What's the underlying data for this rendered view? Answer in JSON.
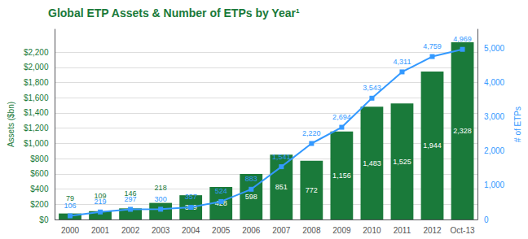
{
  "chart_data": {
    "type": "bar",
    "title": "Global ETP Assets & Number of ETPs by Year¹",
    "ylabel": "Assets ($bn)",
    "y2label": "# of ETPs",
    "categories": [
      "2000",
      "2001",
      "2002",
      "2003",
      "2004",
      "2005",
      "2006",
      "2007",
      "2008",
      "2009",
      "2010",
      "2011",
      "2012",
      "Oct-13"
    ],
    "series": [
      {
        "type": "bar",
        "color": "#1a7a3a",
        "values": [
          79,
          109,
          146,
          218,
          319,
          428,
          598,
          851,
          772,
          1156,
          1483,
          1525,
          1944,
          2328
        ],
        "value_labels": [
          "79",
          "109",
          "146",
          "218",
          "319",
          "428",
          "598",
          "851",
          "772",
          "1,156",
          "1,483",
          "1,525",
          "1,944",
          "2,328"
        ]
      },
      {
        "type": "line",
        "axis": "y2",
        "color": "#3399ff",
        "marker": "square",
        "values": [
          106,
          219,
          297,
          300,
          357,
          524,
          883,
          1541,
          2220,
          2694,
          3543,
          4311,
          4759,
          4969
        ],
        "value_labels": [
          "106",
          "219",
          "297",
          "300",
          "357",
          "524",
          "883",
          "1,541",
          "2,220",
          "2,694",
          "3,543",
          "4,311",
          "4,759",
          "4,969"
        ]
      }
    ],
    "ylim": [
      0,
      2500
    ],
    "yticks": [
      {
        "value": 0,
        "label": "$0"
      },
      {
        "value": 200,
        "label": "$200"
      },
      {
        "value": 400,
        "label": "$400"
      },
      {
        "value": 600,
        "label": "$600"
      },
      {
        "value": 800,
        "label": "$800"
      },
      {
        "value": 1000,
        "label": "$1,000"
      },
      {
        "value": 1200,
        "label": "$1,200"
      },
      {
        "value": 1400,
        "label": "$1,400"
      },
      {
        "value": 1600,
        "label": "$1,600"
      },
      {
        "value": 1800,
        "label": "$1,800"
      },
      {
        "value": 2000,
        "label": "$2,000"
      },
      {
        "value": 2200,
        "label": "$2,200"
      }
    ],
    "y2lim": [
      0,
      5556
    ],
    "y2ticks": [
      0,
      {
        "value": 1000,
        "label": "1,000"
      },
      {
        "value": 2000,
        "label": "2,000"
      },
      {
        "value": 3000,
        "label": "3,000"
      },
      {
        "value": 4000,
        "label": "4,000"
      },
      {
        "value": 5000,
        "label": "5,000"
      }
    ],
    "grid": true,
    "data_labels": true
  }
}
